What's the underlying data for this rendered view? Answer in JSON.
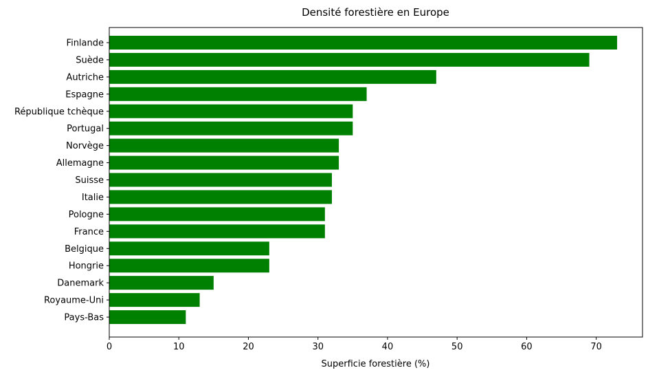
{
  "chart_data": {
    "type": "bar",
    "orientation": "horizontal",
    "title": "Densité forestière en Europe",
    "xlabel": "Superficie forestière (%)",
    "ylabel": "",
    "categories": [
      "Finlande",
      "Suède",
      "Autriche",
      "Espagne",
      "République tchèque",
      "Portugal",
      "Norvège",
      "Allemagne",
      "Suisse",
      "Italie",
      "Pologne",
      "France",
      "Belgique",
      "Hongrie",
      "Danemark",
      "Royaume-Uni",
      "Pays-Bas"
    ],
    "values": [
      73,
      69,
      47,
      37,
      35,
      35,
      33,
      33,
      32,
      32,
      31,
      31,
      23,
      23,
      15,
      13,
      11
    ],
    "xlim": [
      0,
      76.65
    ],
    "xticks": [
      0,
      10,
      20,
      30,
      40,
      50,
      60,
      70
    ],
    "bar_color": "#008000",
    "grid": false,
    "legend": false
  }
}
